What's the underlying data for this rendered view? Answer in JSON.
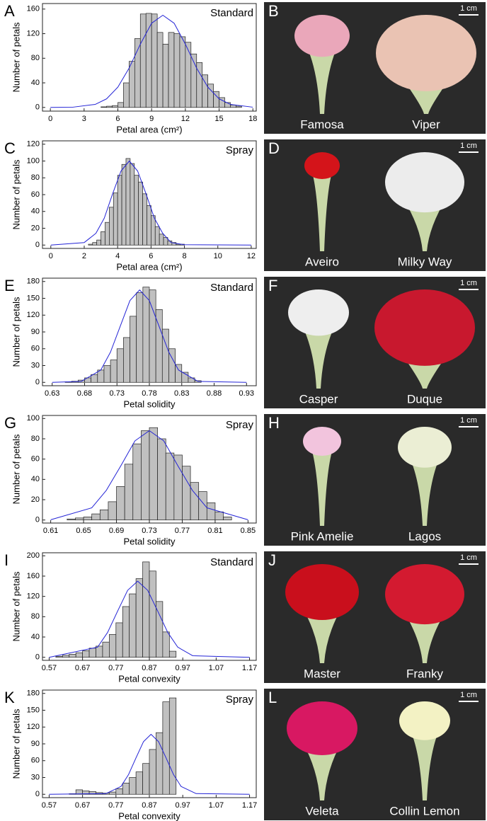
{
  "chart_data": [
    {
      "type": "histogram",
      "panel": "A",
      "title": "Standard",
      "xlabel": "Petal area (cm²)",
      "ylabel": "Number of petals",
      "bins": [
        4.5,
        5,
        5.5,
        6,
        6.5,
        7,
        7.5,
        8,
        8.5,
        9,
        9.5,
        10,
        10.5,
        11,
        11.5,
        12,
        12.5,
        13,
        13.5,
        14,
        14.5,
        15,
        15.5,
        16,
        16.5,
        17
      ],
      "counts": [
        1,
        2,
        3,
        8,
        40,
        75,
        112,
        152,
        153,
        152,
        122,
        103,
        122,
        120,
        115,
        106,
        87,
        73,
        53,
        38,
        26,
        16,
        8,
        4,
        2
      ],
      "color": "#c0c0c0",
      "fit": {
        "x": [
          0,
          2,
          4,
          5,
          6,
          7,
          8,
          9,
          10,
          11,
          12,
          13,
          14,
          15,
          16,
          18
        ],
        "y": [
          0,
          0.4,
          5,
          14,
          33,
          64,
          103,
          137,
          150,
          137,
          103,
          64,
          33,
          14,
          5,
          0.4
        ],
        "color": "#2323d6"
      },
      "xlim": [
        -0.7,
        18.3
      ],
      "ylim": [
        -6,
        169
      ],
      "xticks": [
        0,
        3,
        6,
        9,
        12,
        15,
        18
      ],
      "yticks": [
        0,
        40,
        80,
        120,
        160
      ]
    },
    {
      "type": "histogram",
      "panel": "C",
      "title": "Spray",
      "xlabel": "Petal area (cm²)",
      "ylabel": "Number of petals",
      "bins": [
        2.25,
        2.5,
        2.75,
        3,
        3.25,
        3.5,
        3.75,
        4,
        4.25,
        4.5,
        4.75,
        5,
        5.25,
        5.5,
        5.75,
        6,
        6.25,
        6.5,
        6.75,
        7,
        7.25,
        7.5,
        7.75,
        8
      ],
      "counts": [
        1,
        3,
        6,
        16,
        27,
        45,
        62,
        83,
        96,
        103,
        97,
        83,
        75,
        61,
        47,
        35,
        22,
        13,
        9,
        5,
        3,
        1,
        1
      ],
      "color": "#c0c0c0",
      "fit": {
        "x": [
          0,
          2,
          2.7,
          3.2,
          3.7,
          4.2,
          4.7,
          5.2,
          5.7,
          6.2,
          6.7,
          7.2,
          8,
          12
        ],
        "y": [
          0,
          3,
          14,
          32,
          61,
          88,
          100,
          88,
          61,
          32,
          14,
          3,
          0.4,
          0
        ],
        "color": "#2323d6"
      },
      "xlim": [
        -0.5,
        12.3
      ],
      "ylim": [
        -4,
        124
      ],
      "xticks": [
        0,
        2,
        4,
        6,
        8,
        10,
        12
      ],
      "yticks": [
        0,
        20,
        40,
        60,
        80,
        100,
        120
      ]
    },
    {
      "type": "histogram",
      "panel": "E",
      "title": "Standard",
      "xlabel": "Petal solidity",
      "ylabel": "Number of petals",
      "bins": [
        0.65,
        0.66,
        0.67,
        0.68,
        0.69,
        0.7,
        0.71,
        0.72,
        0.73,
        0.74,
        0.75,
        0.76,
        0.77,
        0.78,
        0.79,
        0.8,
        0.81,
        0.82,
        0.83,
        0.84,
        0.85,
        0.86
      ],
      "counts": [
        1,
        2,
        4,
        8,
        14,
        22,
        30,
        40,
        60,
        80,
        118,
        160,
        170,
        165,
        130,
        95,
        60,
        32,
        18,
        8,
        3
      ],
      "color": "#c0c0c0",
      "fit": {
        "x": [
          0.63,
          0.675,
          0.705,
          0.72,
          0.735,
          0.75,
          0.765,
          0.78,
          0.795,
          0.81,
          0.825,
          0.855,
          0.93
        ],
        "y": [
          0,
          1.8,
          22,
          54,
          100,
          146,
          165,
          146,
          100,
          54,
          22,
          1.8,
          0
        ],
        "color": "#2323d6"
      },
      "xlim": [
        0.615,
        0.945
      ],
      "ylim": [
        -6,
        186
      ],
      "xticks": [
        0.63,
        0.68,
        0.73,
        0.78,
        0.83,
        0.88,
        0.93
      ],
      "yticks": [
        0,
        30,
        60,
        90,
        120,
        150,
        180
      ]
    },
    {
      "type": "histogram",
      "panel": "G",
      "title": "Spray",
      "xlabel": "Petal solidity",
      "ylabel": "Number of petals",
      "bins": [
        0.63,
        0.64,
        0.65,
        0.66,
        0.67,
        0.68,
        0.69,
        0.7,
        0.71,
        0.72,
        0.73,
        0.74,
        0.75,
        0.76,
        0.77,
        0.78,
        0.79,
        0.8,
        0.81,
        0.82,
        0.83
      ],
      "counts": [
        1,
        2,
        3,
        6,
        10,
        18,
        33,
        55,
        75,
        88,
        91,
        80,
        66,
        64,
        53,
        37,
        28,
        17,
        8,
        3
      ],
      "color": "#c0c0c0",
      "fit": {
        "x": [
          0.61,
          0.66,
          0.6775,
          0.695,
          0.7125,
          0.73,
          0.7475,
          0.765,
          0.7825,
          0.8,
          0.85
        ],
        "y": [
          0.2,
          12,
          29,
          53,
          78,
          88,
          78,
          53,
          29,
          12,
          0.2
        ],
        "color": "#2323d6"
      },
      "xlim": [
        0.6,
        0.86
      ],
      "ylim": [
        -3,
        103
      ],
      "xticks": [
        0.61,
        0.65,
        0.69,
        0.73,
        0.77,
        0.81,
        0.85
      ],
      "yticks": [
        0,
        20,
        40,
        60,
        80,
        100
      ]
    },
    {
      "type": "histogram",
      "panel": "I",
      "title": "Standard",
      "xlabel": "Petal convexity",
      "ylabel": "Number of petals",
      "bins": [
        0.59,
        0.61,
        0.63,
        0.65,
        0.67,
        0.69,
        0.71,
        0.73,
        0.75,
        0.77,
        0.79,
        0.81,
        0.83,
        0.85,
        0.87,
        0.89,
        0.91,
        0.93,
        0.95
      ],
      "counts": [
        2,
        4,
        6,
        9,
        13,
        18,
        22,
        30,
        45,
        68,
        100,
        125,
        155,
        188,
        170,
        110,
        50,
        12
      ],
      "color": "#c0c0c0",
      "fit": {
        "x": [
          0.57,
          0.715,
          0.745,
          0.775,
          0.805,
          0.835,
          0.865,
          0.895,
          0.925,
          0.955,
          1.0,
          1.17
        ],
        "y": [
          0,
          20,
          49,
          91,
          132,
          150,
          132,
          91,
          49,
          20,
          3,
          0
        ],
        "color": "#2323d6"
      },
      "xlim": [
        0.55,
        1.19
      ],
      "ylim": [
        -6,
        206
      ],
      "xticks": [
        0.57,
        0.67,
        0.77,
        0.87,
        0.97,
        1.07,
        1.17
      ],
      "yticks": [
        0,
        40,
        80,
        120,
        160,
        200
      ]
    },
    {
      "type": "histogram",
      "panel": "K",
      "title": "Spray",
      "xlabel": "Petal convexity",
      "ylabel": "Number of petals",
      "bins": [
        0.63,
        0.65,
        0.67,
        0.69,
        0.71,
        0.73,
        0.75,
        0.77,
        0.79,
        0.81,
        0.83,
        0.85,
        0.87,
        0.89,
        0.91,
        0.93,
        0.95
      ],
      "counts": [
        1,
        8,
        6,
        5,
        3,
        2,
        4,
        10,
        20,
        30,
        40,
        55,
        80,
        110,
        165,
        172
      ],
      "color": "#c0c0c0",
      "fit": {
        "x": [
          0.57,
          0.74,
          0.785,
          0.8075,
          0.83,
          0.8525,
          0.875,
          0.8975,
          0.92,
          0.9425,
          0.965,
          1.01,
          1.17
        ],
        "y": [
          0,
          1.2,
          14,
          35,
          65,
          94,
          107,
          94,
          65,
          35,
          14,
          1.2,
          0
        ],
        "color": "#2323d6"
      },
      "xlim": [
        0.55,
        1.19
      ],
      "ylim": [
        -6,
        186
      ],
      "xticks": [
        0.57,
        0.67,
        0.77,
        0.87,
        0.97,
        1.07,
        1.17
      ],
      "yticks": [
        0,
        30,
        60,
        90,
        120,
        150,
        180
      ]
    }
  ],
  "photos": [
    {
      "panel": "B",
      "scale": "1 cm",
      "labels": [
        "Famosa",
        "Viper"
      ]
    },
    {
      "panel": "D",
      "scale": "1 cm",
      "labels": [
        "Aveiro",
        "Milky Way"
      ]
    },
    {
      "panel": "F",
      "scale": "1 cm",
      "labels": [
        "Casper",
        "Duque"
      ]
    },
    {
      "panel": "H",
      "scale": "1 cm",
      "labels": [
        "Pink Amelie",
        "Lagos"
      ]
    },
    {
      "panel": "J",
      "scale": "1 cm",
      "labels": [
        "Master",
        "Franky"
      ]
    },
    {
      "panel": "L",
      "scale": "1 cm",
      "labels": [
        "Veleta",
        "Collin Lemon"
      ]
    }
  ]
}
